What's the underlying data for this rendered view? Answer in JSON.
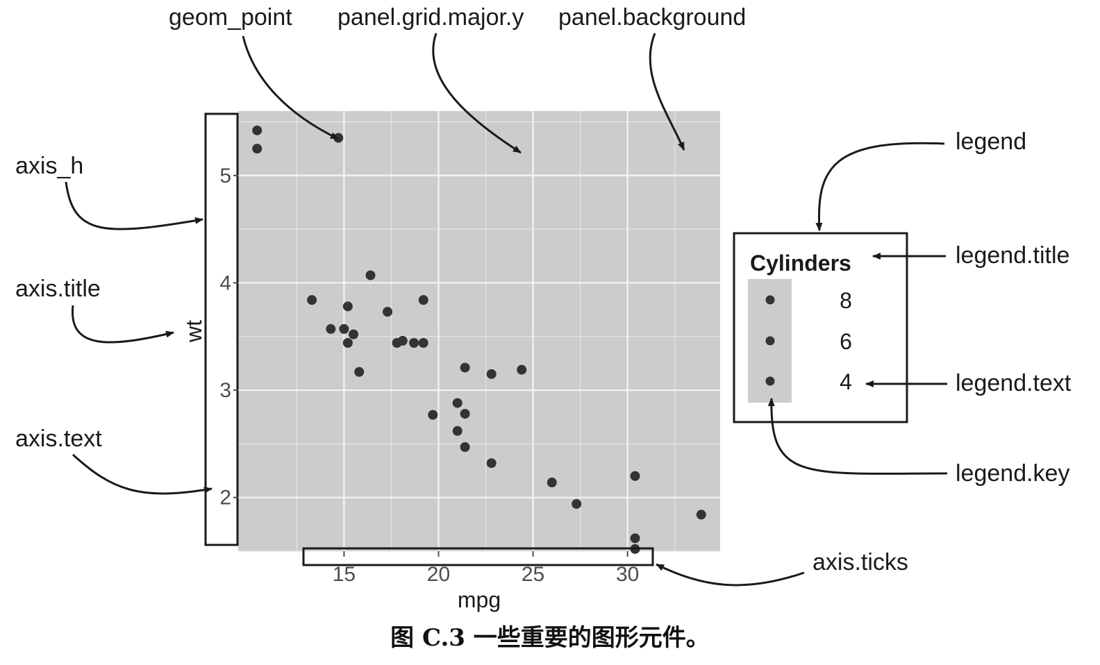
{
  "annotations": {
    "geom_point": "geom_point",
    "panel_grid_major_y": "panel.grid.major.y",
    "panel_background": "panel.background",
    "axis_h": "axis_h",
    "axis_title": "axis.title",
    "axis_text": "axis.text",
    "legend": "legend",
    "legend_title": "legend.title",
    "legend_text": "legend.text",
    "legend_key": "legend.key",
    "axis_ticks": "axis.ticks"
  },
  "caption": "图 C.3 一些重要的图形元件。",
  "colors": {
    "panel": "#cccccc",
    "grid": "#f4f4f4",
    "point": "#333333"
  },
  "chart_data": {
    "type": "scatter",
    "xlabel": "mpg",
    "ylabel": "wt",
    "xlim": [
      9.4,
      34.9
    ],
    "ylim": [
      1.5,
      5.6
    ],
    "x_ticks": [
      15,
      20,
      25,
      30
    ],
    "y_ticks": [
      2,
      3,
      4,
      5
    ],
    "x_tick_labels": [
      "15",
      "20",
      "25",
      "30"
    ],
    "y_tick_labels": [
      "2",
      "3",
      "4",
      "5"
    ],
    "grid": true,
    "legend": {
      "title": "Cylinders",
      "position": "right",
      "entries": [
        "8",
        "6",
        "4"
      ]
    },
    "points": [
      [
        10.4,
        5.42
      ],
      [
        10.4,
        5.25
      ],
      [
        14.7,
        5.35
      ],
      [
        16.4,
        4.07
      ],
      [
        13.3,
        3.84
      ],
      [
        19.2,
        3.84
      ],
      [
        15.2,
        3.78
      ],
      [
        17.3,
        3.73
      ],
      [
        14.3,
        3.57
      ],
      [
        15.0,
        3.57
      ],
      [
        15.5,
        3.52
      ],
      [
        15.2,
        3.44
      ],
      [
        17.8,
        3.44
      ],
      [
        18.1,
        3.46
      ],
      [
        18.7,
        3.44
      ],
      [
        19.2,
        3.44
      ],
      [
        15.8,
        3.17
      ],
      [
        21.4,
        3.21
      ],
      [
        22.8,
        3.15
      ],
      [
        24.4,
        3.19
      ],
      [
        19.7,
        2.77
      ],
      [
        21.0,
        2.88
      ],
      [
        21.4,
        2.78
      ],
      [
        21.0,
        2.62
      ],
      [
        21.4,
        2.47
      ],
      [
        22.8,
        2.32
      ],
      [
        26.0,
        2.14
      ],
      [
        30.4,
        2.2
      ],
      [
        27.3,
        1.94
      ],
      [
        33.9,
        1.84
      ],
      [
        30.4,
        1.62
      ],
      [
        30.4,
        1.52
      ]
    ]
  }
}
